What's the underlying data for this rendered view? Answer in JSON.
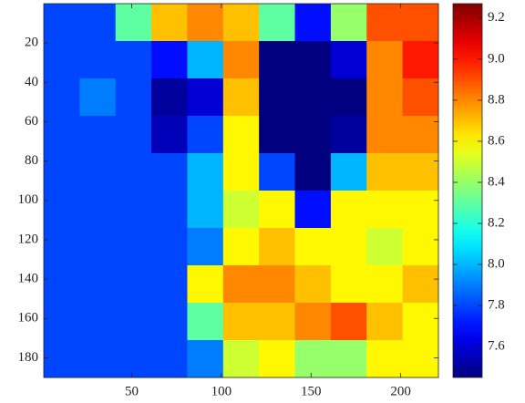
{
  "chart_data": {
    "type": "heatmap",
    "colormap": "jet",
    "x": [
      11,
      31,
      51,
      71,
      91,
      111,
      131,
      151,
      171,
      191,
      211
    ],
    "y": [
      9.5,
      28.5,
      47.5,
      66.5,
      85.5,
      104.5,
      123.5,
      142.5,
      161.5,
      180.5
    ],
    "z": [
      [
        7.8,
        7.8,
        8.3,
        8.7,
        8.8,
        8.7,
        8.3,
        7.7,
        8.4,
        8.9,
        8.9
      ],
      [
        7.8,
        7.8,
        7.8,
        7.7,
        8.0,
        8.8,
        7.45,
        7.45,
        7.6,
        8.8,
        9.0
      ],
      [
        7.8,
        7.9,
        7.8,
        7.5,
        7.6,
        8.7,
        7.45,
        7.45,
        7.45,
        8.8,
        8.9
      ],
      [
        7.8,
        7.8,
        7.8,
        7.55,
        7.8,
        8.6,
        7.45,
        7.45,
        7.5,
        8.8,
        8.8
      ],
      [
        7.8,
        7.8,
        7.8,
        7.8,
        8.0,
        8.6,
        7.8,
        7.45,
        8.0,
        8.7,
        8.7
      ],
      [
        7.8,
        7.8,
        7.8,
        7.8,
        8.0,
        8.5,
        8.6,
        7.7,
        8.6,
        8.6,
        8.6
      ],
      [
        7.8,
        7.8,
        7.8,
        7.8,
        7.9,
        8.6,
        8.7,
        8.6,
        8.6,
        8.5,
        8.6
      ],
      [
        7.8,
        7.8,
        7.8,
        7.8,
        8.6,
        8.8,
        8.8,
        8.7,
        8.6,
        8.6,
        8.7
      ],
      [
        7.8,
        7.8,
        7.8,
        7.8,
        8.3,
        8.7,
        8.7,
        8.8,
        8.9,
        8.7,
        8.6
      ],
      [
        7.8,
        7.8,
        7.8,
        7.8,
        7.9,
        8.5,
        8.6,
        8.4,
        8.4,
        8.6,
        8.6
      ]
    ],
    "xlim": [
      1,
      221
    ],
    "xticks": [
      50,
      100,
      150,
      200
    ],
    "ylim": [
      0,
      190
    ],
    "yticks": [
      20,
      40,
      60,
      80,
      100,
      120,
      140,
      160,
      180
    ],
    "clim": [
      7.45,
      9.27
    ],
    "cticks": [
      7.6,
      7.8,
      {
        "value": 8,
        "label": "8.0"
      },
      8.2,
      8.4,
      8.6,
      8.8,
      {
        "value": 9,
        "label": "9.0"
      },
      9.2
    ]
  }
}
